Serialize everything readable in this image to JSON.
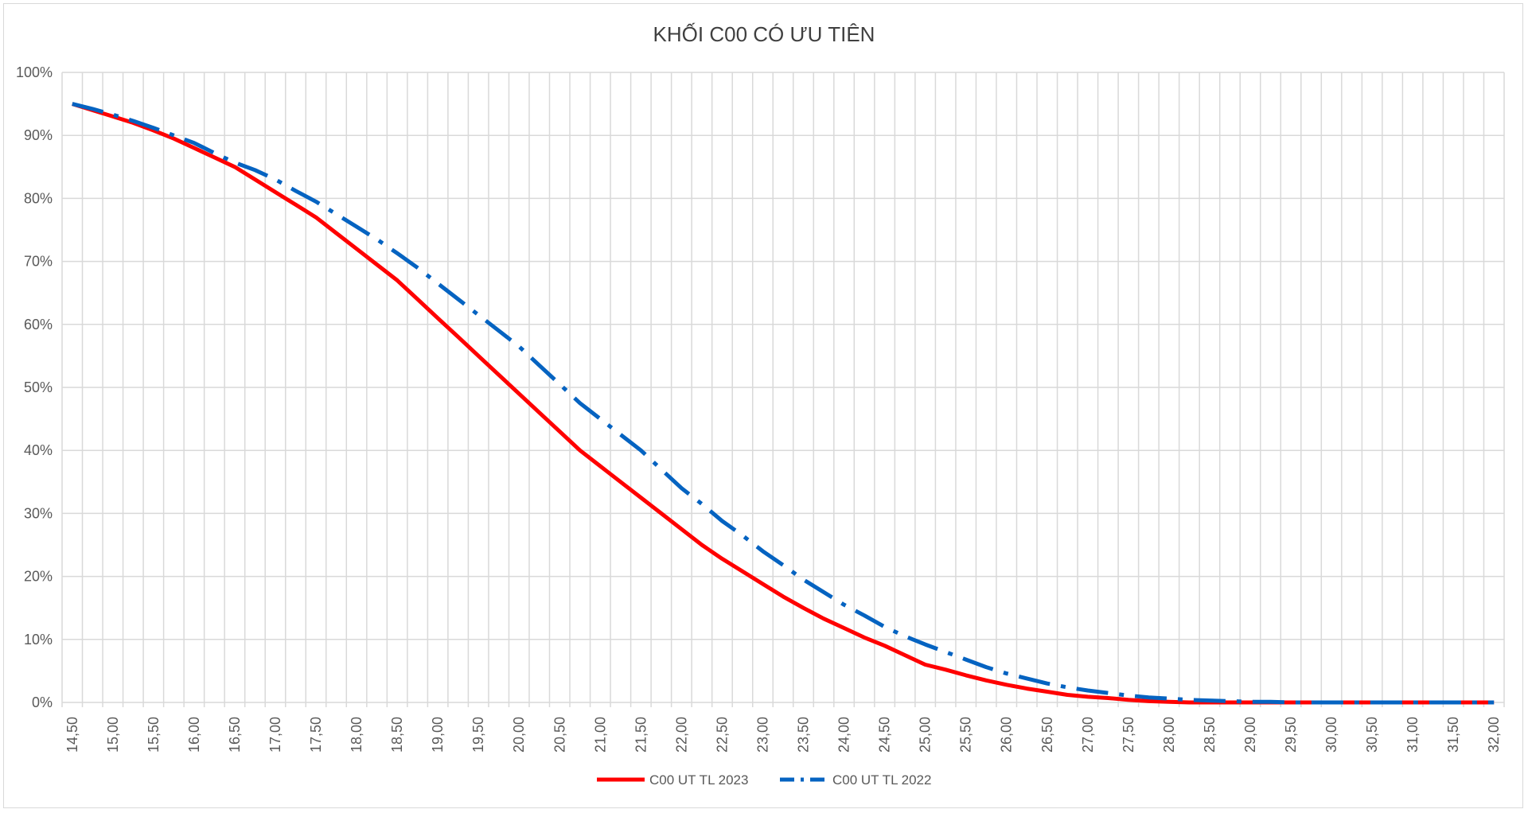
{
  "chart_data": {
    "type": "line",
    "title": "KHỐI C00 CÓ ƯU TIÊN",
    "xlabel": "",
    "ylabel": "",
    "ylim": [
      0,
      100
    ],
    "y_ticks": [
      "0%",
      "10%",
      "20%",
      "30%",
      "40%",
      "50%",
      "60%",
      "70%",
      "80%",
      "90%",
      "100%"
    ],
    "grid": true,
    "legend_position": "bottom",
    "categories": [
      "14,50",
      "14,75",
      "15,00",
      "15,25",
      "15,50",
      "15,75",
      "16,00",
      "16,25",
      "16,50",
      "16,75",
      "17,00",
      "17,25",
      "17,50",
      "17,75",
      "18,00",
      "18,25",
      "18,50",
      "18,75",
      "19,00",
      "19,25",
      "19,50",
      "19,75",
      "20,00",
      "20,25",
      "20,50",
      "20,75",
      "21,00",
      "21,25",
      "21,50",
      "21,75",
      "22,00",
      "22,25",
      "22,50",
      "22,75",
      "23,00",
      "23,25",
      "23,50",
      "23,75",
      "24,00",
      "24,25",
      "24,50",
      "24,75",
      "25,00",
      "25,25",
      "25,50",
      "25,75",
      "26,00",
      "26,25",
      "26,50",
      "26,75",
      "27,00",
      "27,25",
      "27,50",
      "27,75",
      "28,00",
      "28,25",
      "28,50",
      "28,75",
      "29,00",
      "29,25",
      "29,50",
      "29,75",
      "30,00",
      "30,25",
      "30,50",
      "30,75",
      "31,00",
      "31,25",
      "31,50",
      "31,75",
      "32,00"
    ],
    "series": [
      {
        "name": "C00 UT TL 2023",
        "color": "#ff0000",
        "style": "solid",
        "values": [
          95.0,
          94.0,
          93.0,
          92.0,
          90.8,
          89.5,
          88.0,
          86.5,
          85.0,
          83.0,
          81.0,
          79.0,
          77.0,
          74.5,
          72.0,
          69.5,
          67.0,
          64.0,
          61.0,
          58.0,
          55.0,
          52.0,
          49.0,
          46.0,
          43.0,
          40.0,
          37.5,
          35.0,
          32.5,
          30.0,
          27.5,
          25.0,
          22.8,
          20.8,
          18.8,
          16.8,
          15.0,
          13.3,
          11.8,
          10.3,
          9.0,
          7.5,
          6.0,
          5.2,
          4.3,
          3.5,
          2.8,
          2.2,
          1.7,
          1.2,
          0.9,
          0.7,
          0.4,
          0.2,
          0.1,
          0.0,
          0.0,
          0.0,
          0.0,
          0.0,
          0.0,
          0.0,
          0.0,
          0.0,
          0.0,
          0.0,
          0.0,
          0.0,
          0.0,
          0.0,
          0.0
        ]
      },
      {
        "name": "C00 UT TL 2022",
        "color": "#0563c1",
        "style": "dashdot",
        "values": [
          95.0,
          94.2,
          93.3,
          92.3,
          91.2,
          90.0,
          88.8,
          87.2,
          85.7,
          84.5,
          83.0,
          81.2,
          79.5,
          77.5,
          75.5,
          73.5,
          71.3,
          69.0,
          66.5,
          64.0,
          61.5,
          59.0,
          56.5,
          53.5,
          50.5,
          47.5,
          45.0,
          42.5,
          40.0,
          37.0,
          34.0,
          31.5,
          28.8,
          26.5,
          24.0,
          21.8,
          19.5,
          17.5,
          15.5,
          13.8,
          12.0,
          10.5,
          9.2,
          8.0,
          6.8,
          5.6,
          4.6,
          3.8,
          3.0,
          2.4,
          1.9,
          1.5,
          1.1,
          0.8,
          0.6,
          0.4,
          0.3,
          0.2,
          0.1,
          0.1,
          0.0,
          0.0,
          0.0,
          0.0,
          0.0,
          0.0,
          0.0,
          0.0,
          0.0,
          0.0,
          0.0
        ]
      }
    ]
  }
}
